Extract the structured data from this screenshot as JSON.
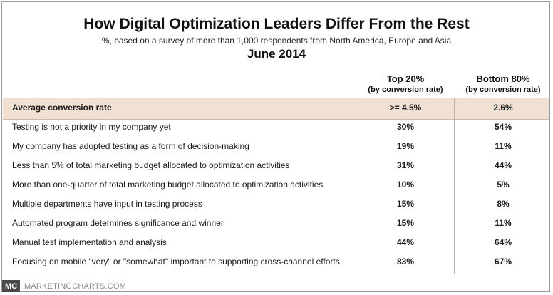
{
  "chart_data": {
    "type": "table",
    "title": "How Digital Optimization Leaders Differ From the Rest",
    "subtitle": "%, based on a survey of more than 1,000 respondents from North America, Europe and Asia",
    "date": "June 2014",
    "columns": [
      {
        "name": "Top 20%",
        "sub": "(by conversion rate)"
      },
      {
        "name": "Bottom 80%",
        "sub": "(by conversion rate)"
      }
    ],
    "rows": [
      {
        "label": "Average conversion rate",
        "top": ">= 4.5%",
        "bottom": "2.6%"
      },
      {
        "label": "Testing is not a priority in my company yet",
        "top": "30%",
        "bottom": "54%"
      },
      {
        "label": "My company has adopted testing as a form of decision-making",
        "top": "19%",
        "bottom": "11%"
      },
      {
        "label": "Less than 5% of total marketing budget allocated to optimization activities",
        "top": "31%",
        "bottom": "44%"
      },
      {
        "label": "More than one-quarter of total marketing budget allocated to optimization activities",
        "top": "10%",
        "bottom": "5%"
      },
      {
        "label": "Multiple departments have input in testing process",
        "top": "15%",
        "bottom": "8%"
      },
      {
        "label": "Automated program determines significance and winner",
        "top": "15%",
        "bottom": "11%"
      },
      {
        "label": "Manual test implementation and analysis",
        "top": "44%",
        "bottom": "64%"
      },
      {
        "label": "Focusing on mobile \"very\" or \"somewhat\" important to supporting cross-channel efforts",
        "top": "83%",
        "bottom": "67%"
      }
    ]
  },
  "footer": {
    "logo": "MC",
    "site": "MARKETINGCHARTS.COM"
  },
  "colors": {
    "highlight": "#f0e1d2",
    "logo_bg": "#4a4a4a"
  }
}
